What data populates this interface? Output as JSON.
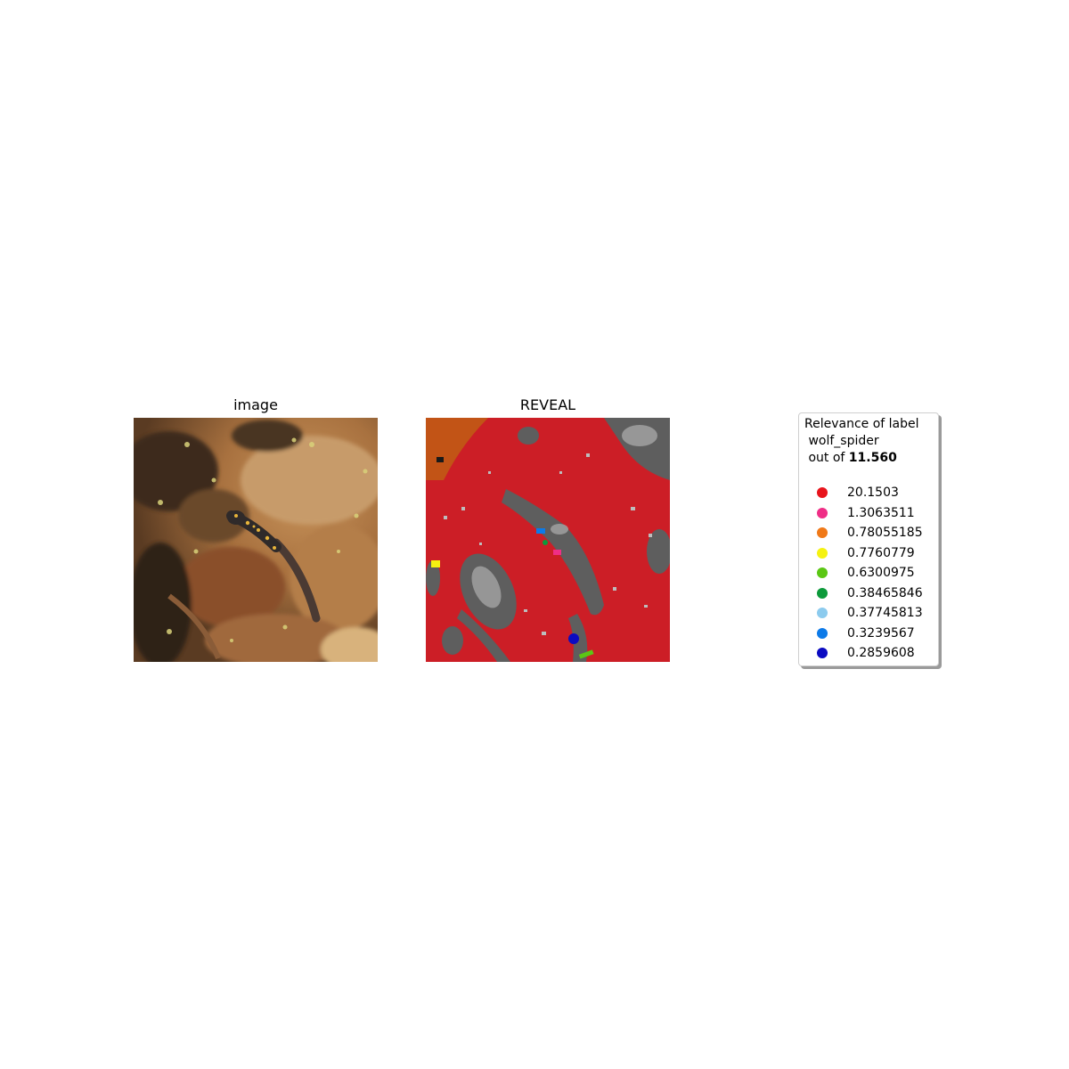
{
  "panels": {
    "left_title": "image",
    "right_title": "REVEAL"
  },
  "legend": {
    "line1": "Relevance of label",
    "line2": " wolf_spider",
    "line3_prefix": " out of ",
    "total": "11.560",
    "items": [
      {
        "value": "20.1503",
        "color": "#e8141c"
      },
      {
        "value": "1.3063511",
        "color": "#ef2e86"
      },
      {
        "value": "0.78055185",
        "color": "#f07918"
      },
      {
        "value": "0.7760779",
        "color": "#f5f211"
      },
      {
        "value": "0.6300975",
        "color": "#5bc714"
      },
      {
        "value": "0.38465846",
        "color": "#0d9a3b"
      },
      {
        "value": "0.37745813",
        "color": "#8ccbee"
      },
      {
        "value": "0.3239567",
        "color": "#0d7ae8"
      },
      {
        "value": "0.2859608",
        "color": "#0b0bc2"
      }
    ]
  }
}
